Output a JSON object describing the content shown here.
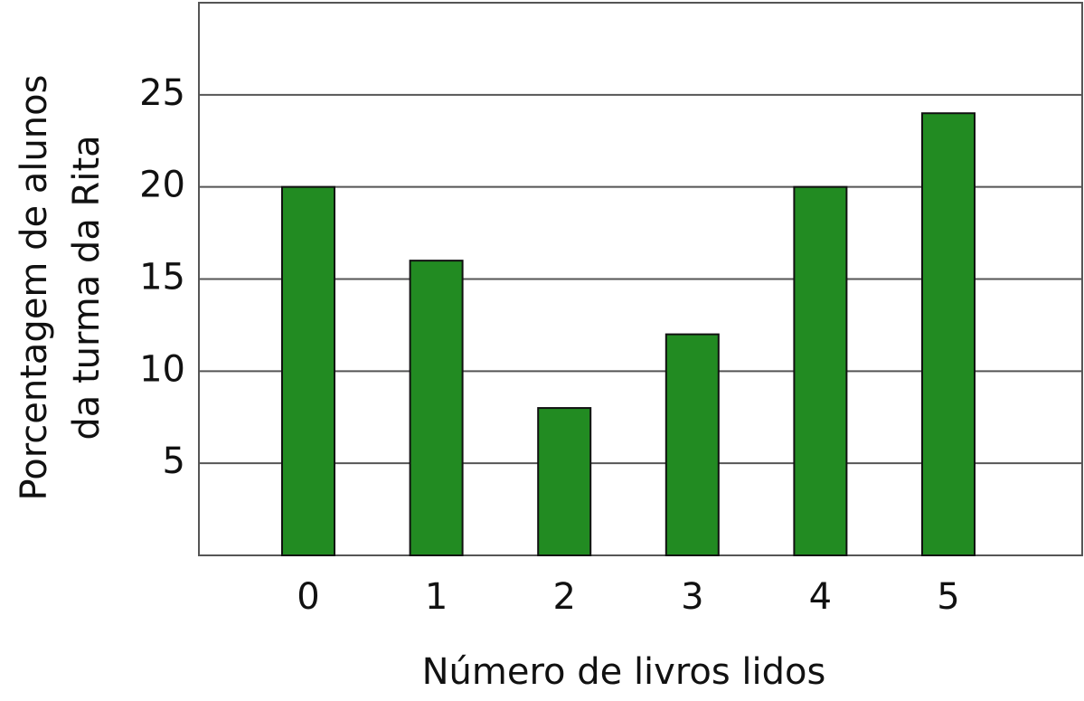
{
  "chart_data": {
    "type": "bar",
    "xlabel": "Número de livros lidos",
    "ylabel": [
      "Porcentagem de alunos",
      "da turma da Rita"
    ],
    "categories": [
      "0",
      "1",
      "2",
      "3",
      "4",
      "5"
    ],
    "values": [
      20,
      16,
      8,
      12,
      20,
      24
    ],
    "color": "#228b22",
    "ylim": [
      0,
      30
    ],
    "yticks": [
      5,
      10,
      15,
      20,
      25
    ],
    "grid": true
  }
}
